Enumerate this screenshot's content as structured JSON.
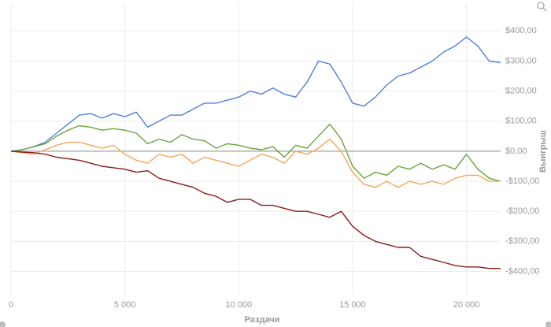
{
  "chart_data": {
    "type": "line",
    "x_label": "Раздачи",
    "y_label": "Выигрыш",
    "x": [
      0,
      500,
      1000,
      1500,
      2000,
      2500,
      3000,
      3500,
      4000,
      4500,
      5000,
      5500,
      6000,
      6500,
      7000,
      7500,
      8000,
      8500,
      9000,
      9500,
      10000,
      10500,
      11000,
      11500,
      12000,
      12500,
      13000,
      13500,
      14000,
      14500,
      15000,
      15500,
      16000,
      16500,
      17000,
      17500,
      18000,
      18500,
      19000,
      19500,
      20000,
      20500,
      21000,
      21500
    ],
    "series": [
      {
        "color": "#4f7fdc",
        "values": [
          0,
          5,
          15,
          30,
          60,
          90,
          120,
          125,
          110,
          125,
          115,
          130,
          80,
          100,
          120,
          120,
          140,
          160,
          160,
          170,
          180,
          200,
          190,
          210,
          190,
          180,
          230,
          300,
          290,
          230,
          160,
          150,
          180,
          220,
          250,
          260,
          280,
          300,
          330,
          350,
          380,
          350,
          300,
          295
        ]
      },
      {
        "color": "#6aa33a",
        "values": [
          0,
          5,
          15,
          25,
          50,
          70,
          85,
          80,
          70,
          75,
          70,
          60,
          25,
          40,
          30,
          55,
          40,
          35,
          10,
          25,
          20,
          10,
          5,
          15,
          -20,
          20,
          10,
          50,
          90,
          40,
          -50,
          -90,
          -70,
          -80,
          -50,
          -60,
          -40,
          -60,
          -45,
          -60,
          -10,
          -60,
          -90,
          -100
        ]
      },
      {
        "color": "#f0a85a",
        "values": [
          0,
          -5,
          -10,
          5,
          20,
          30,
          30,
          20,
          10,
          20,
          -10,
          -30,
          -40,
          -10,
          -20,
          -10,
          -40,
          -20,
          -30,
          -40,
          -50,
          -30,
          -10,
          -20,
          -40,
          0,
          -10,
          10,
          40,
          0,
          -70,
          -110,
          -120,
          -100,
          -120,
          -100,
          -110,
          -100,
          -110,
          -90,
          -80,
          -80,
          -100,
          -100
        ]
      },
      {
        "color": "#8b1a1a",
        "values": [
          0,
          -3,
          -5,
          -10,
          -20,
          -25,
          -30,
          -40,
          -50,
          -55,
          -60,
          -70,
          -65,
          -90,
          -100,
          -110,
          -120,
          -140,
          -150,
          -170,
          -160,
          -160,
          -180,
          -180,
          -190,
          -200,
          -200,
          -210,
          -220,
          -200,
          -250,
          -280,
          -300,
          -310,
          -320,
          -320,
          -350,
          -360,
          -370,
          -380,
          -385,
          -385,
          -390,
          -390
        ]
      }
    ],
    "xlim": [
      0,
      21500
    ],
    "xticks": [
      0,
      {
        "value": 5000,
        "label": "5 000"
      },
      {
        "value": 10000,
        "label": "10 000"
      },
      {
        "value": 15000,
        "label": "15 000"
      },
      {
        "value": 20000,
        "label": "20 000"
      }
    ],
    "ylim": [
      -480,
      490
    ],
    "yticks": [
      {
        "value": -400,
        "label": "-$400,00"
      },
      {
        "value": -300,
        "label": "-$300,00"
      },
      {
        "value": -200,
        "label": "-$200,00"
      },
      {
        "value": -100,
        "label": "-$100,00"
      },
      {
        "value": 0,
        "label": "$0,00"
      },
      {
        "value": 100,
        "label": "$100,00"
      },
      {
        "value": 200,
        "label": "$200,00"
      },
      {
        "value": 300,
        "label": "$300,00"
      },
      {
        "value": 400,
        "label": "$400,00"
      }
    ],
    "grid": true
  }
}
